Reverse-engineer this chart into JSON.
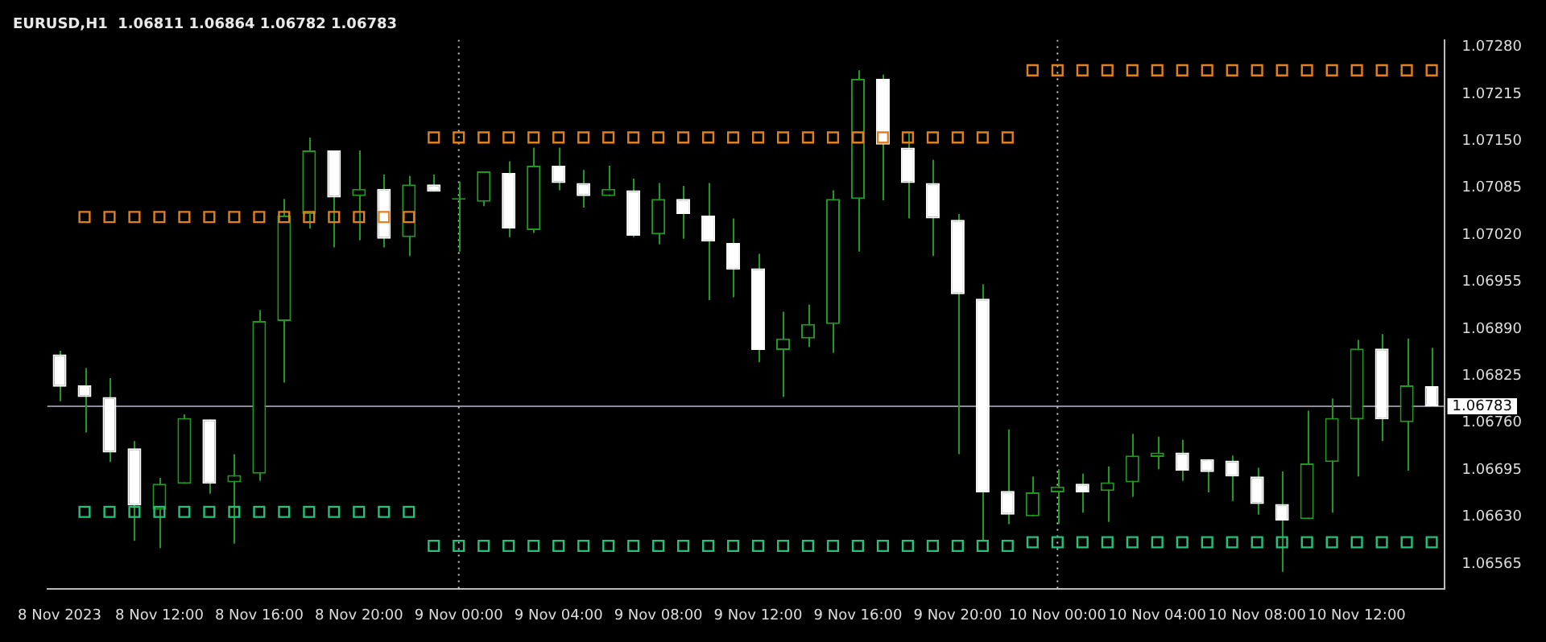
{
  "chart_data": {
    "type": "candlestick",
    "title": "EURUSD,H1  1.06811 1.06864 1.06782 1.06783",
    "color": "#1f9a1f",
    "colors": [
      "#ffffff",
      "#ffffff",
      "#ffffff",
      "#ffffff",
      "#1f9a1f",
      "#1f9a1f",
      "#ffffff",
      "#1f9a1f",
      "#1f9a1f",
      "#1f9a1f",
      "#1f9a1f",
      "#ffffff",
      "#1f9a1f",
      "#ffffff",
      "#1f9a1f",
      "#ffffff",
      "#1f9a1f",
      "#1f9a1f",
      "#ffffff",
      "#1f9a1f",
      "#ffffff",
      "#ffffff",
      "#1f9a1f",
      "#ffffff",
      "#1f9a1f",
      "#ffffff",
      "#ffffff",
      "#ffffff",
      "#ffffff",
      "#1f9a1f",
      "#1f9a1f",
      "#1f9a1f",
      "#1f9a1f",
      "#ffffff",
      "#ffffff",
      "#ffffff",
      "#ffffff",
      "#ffffff",
      "#ffffff",
      "#1f9a1f",
      "#1f9a1f",
      "#ffffff",
      "#1f9a1f",
      "#1f9a1f",
      "#1f9a1f",
      "#ffffff",
      "#ffffff",
      "#ffffff",
      "#ffffff",
      "#ffffff",
      "#1f9a1f",
      "#1f9a1f",
      "#1f9a1f",
      "#ffffff",
      "#1f9a1f",
      "#ffffff"
    ],
    "categories": [
      "8 Nov 2023",
      null,
      null,
      null,
      "8 Nov 12:00",
      null,
      null,
      null,
      "8 Nov 16:00",
      null,
      null,
      null,
      "8 Nov 20:00",
      null,
      null,
      null,
      "9 Nov 00:00",
      null,
      null,
      null,
      "9 Nov 04:00",
      null,
      null,
      null,
      "9 Nov 08:00",
      null,
      null,
      null,
      "9 Nov 12:00",
      null,
      null,
      null,
      "9 Nov 16:00",
      null,
      null,
      null,
      "9 Nov 20:00",
      null,
      null,
      null,
      "10 Nov 00:00",
      null,
      null,
      null,
      "10 Nov 04:00",
      null,
      null,
      null,
      "10 Nov 08:00",
      null,
      null,
      null,
      "10 Nov 12:00",
      null,
      null,
      null
    ],
    "ohlc": [
      [
        1.06855,
        1.0686,
        1.0679,
        1.0681
      ],
      [
        1.06812,
        1.06836,
        1.06747,
        1.06796
      ],
      [
        1.06796,
        1.06822,
        1.06706,
        1.06719
      ],
      [
        1.06725,
        1.06735,
        1.06597,
        1.06646
      ],
      [
        1.0664,
        1.06684,
        1.06587,
        1.06676
      ],
      [
        1.06676,
        1.06772,
        1.06676,
        1.06767
      ],
      [
        1.06765,
        1.06765,
        1.06662,
        1.06676
      ],
      [
        1.06678,
        1.06717,
        1.06593,
        1.06688
      ],
      [
        1.0669,
        1.06916,
        1.0668,
        1.06901
      ],
      [
        1.06901,
        1.0707,
        1.06816,
        1.07047
      ],
      [
        1.07049,
        1.07155,
        1.07029,
        1.07137
      ],
      [
        1.07137,
        1.07137,
        1.07003,
        1.07072
      ],
      [
        1.07074,
        1.07137,
        1.07013,
        1.07084
      ],
      [
        1.07084,
        1.07104,
        1.07003,
        1.07015
      ],
      [
        1.07017,
        1.07102,
        1.06991,
        1.0709
      ],
      [
        1.0709,
        1.07104,
        1.0708,
        1.0708
      ],
      [
        1.07069,
        1.07094,
        1.06997,
        1.07071
      ],
      [
        1.07066,
        1.07108,
        1.0706,
        1.07108
      ],
      [
        1.07106,
        1.07122,
        1.07017,
        1.07029
      ],
      [
        1.07027,
        1.07141,
        1.07023,
        1.07116
      ],
      [
        1.07116,
        1.07141,
        1.07082,
        1.07092
      ],
      [
        1.07092,
        1.0711,
        1.07058,
        1.07074
      ],
      [
        1.07074,
        1.07116,
        1.07074,
        1.07084
      ],
      [
        1.07082,
        1.07098,
        1.07017,
        1.07019
      ],
      [
        1.07021,
        1.07092,
        1.07007,
        1.0707
      ],
      [
        1.0707,
        1.07088,
        1.07015,
        1.07049
      ],
      [
        1.07047,
        1.07092,
        1.0693,
        1.07011
      ],
      [
        1.07009,
        1.07043,
        1.06934,
        1.06972
      ],
      [
        1.06974,
        1.06994,
        1.06844,
        1.06861
      ],
      [
        1.06861,
        1.06914,
        1.06796,
        1.06877
      ],
      [
        1.06877,
        1.06924,
        1.06865,
        1.06897
      ],
      [
        1.06897,
        1.07082,
        1.06857,
        1.0707
      ],
      [
        1.0707,
        1.07248,
        1.06997,
        1.07236
      ],
      [
        1.07236,
        1.07242,
        1.07068,
        1.07145
      ],
      [
        1.07141,
        1.07163,
        1.07043,
        1.07092
      ],
      [
        1.07092,
        1.07124,
        1.06991,
        1.07043
      ],
      [
        1.07041,
        1.07049,
        1.06717,
        1.06938
      ],
      [
        1.06932,
        1.06952,
        1.06597,
        1.06664
      ],
      [
        1.06666,
        1.06751,
        1.0662,
        1.06633
      ],
      [
        1.06631,
        1.06686,
        1.06631,
        1.06664
      ],
      [
        1.06664,
        1.06696,
        1.0662,
        1.06672
      ],
      [
        1.06676,
        1.0669,
        1.06636,
        1.06664
      ],
      [
        1.06666,
        1.067,
        1.06623,
        1.06678
      ],
      [
        1.06678,
        1.06745,
        1.06658,
        1.06715
      ],
      [
        1.06713,
        1.06741,
        1.06696,
        1.06719
      ],
      [
        1.06719,
        1.06737,
        1.0668,
        1.06694
      ],
      [
        1.0671,
        1.0671,
        1.06664,
        1.06692
      ],
      [
        1.06708,
        1.06715,
        1.06652,
        1.06686
      ],
      [
        1.06686,
        1.06698,
        1.06633,
        1.06648
      ],
      [
        1.06648,
        1.06693,
        1.06554,
        1.06625
      ],
      [
        1.06627,
        1.06777,
        1.06627,
        1.06704
      ],
      [
        1.06706,
        1.06794,
        1.06636,
        1.06767
      ],
      [
        1.06765,
        1.06875,
        1.06686,
        1.06863
      ],
      [
        1.06863,
        1.06883,
        1.06735,
        1.06765
      ],
      [
        1.06761,
        1.06877,
        1.06694,
        1.06812
      ],
      [
        1.06811,
        1.06864,
        1.06782,
        1.06783
      ]
    ],
    "series": [
      {
        "type": "scatter",
        "color": "#e0801f",
        "values": [
          null,
          1.07045,
          1.07045,
          1.07045,
          1.07045,
          1.07045,
          1.07045,
          1.07045,
          1.07045,
          1.07045,
          1.07045,
          1.07045,
          1.07045,
          1.07045,
          1.07045,
          null,
          null,
          null,
          null,
          null,
          null,
          null,
          null,
          null,
          null,
          null,
          null,
          null,
          null,
          null,
          null,
          null,
          null,
          null,
          null,
          null,
          null,
          null,
          null,
          null,
          null,
          null,
          null,
          null,
          null,
          null,
          null,
          null,
          null,
          null,
          null,
          null,
          null,
          null,
          null,
          null
        ]
      },
      {
        "type": "scatter",
        "color": "#e0801f",
        "values": [
          null,
          null,
          null,
          null,
          null,
          null,
          null,
          null,
          null,
          null,
          null,
          null,
          null,
          null,
          null,
          1.07155,
          1.07155,
          1.07155,
          1.07155,
          1.07155,
          1.07155,
          1.07155,
          1.07155,
          1.07155,
          1.07155,
          1.07155,
          1.07155,
          1.07155,
          1.07155,
          1.07155,
          1.07155,
          1.07155,
          1.07155,
          1.07155,
          1.07155,
          1.07155,
          1.07155,
          1.07155,
          1.07155,
          null,
          null,
          null,
          null,
          null,
          null,
          null,
          null,
          null,
          null,
          null,
          null,
          null,
          null,
          null,
          null,
          null
        ]
      },
      {
        "type": "scatter",
        "color": "#e0801f",
        "values": [
          null,
          null,
          null,
          null,
          null,
          null,
          null,
          null,
          null,
          null,
          null,
          null,
          null,
          null,
          null,
          null,
          null,
          null,
          null,
          null,
          null,
          null,
          null,
          null,
          null,
          null,
          null,
          null,
          null,
          null,
          null,
          null,
          null,
          null,
          null,
          null,
          null,
          null,
          null,
          1.07248,
          1.07248,
          1.07248,
          1.07248,
          1.07248,
          1.07248,
          1.07248,
          1.07248,
          1.07248,
          1.07248,
          1.07248,
          1.07248,
          1.07248,
          1.07248,
          1.07248,
          1.07248,
          1.07248
        ]
      },
      {
        "type": "scatter",
        "color": "#25c07a",
        "values": [
          null,
          1.06637,
          1.06637,
          1.06637,
          1.06637,
          1.06637,
          1.06637,
          1.06637,
          1.06637,
          1.06637,
          1.06637,
          1.06637,
          1.06637,
          1.06637,
          1.06637,
          null,
          null,
          null,
          null,
          null,
          null,
          null,
          null,
          null,
          null,
          null,
          null,
          null,
          null,
          null,
          null,
          null,
          null,
          null,
          null,
          null,
          null,
          null,
          null,
          null,
          null,
          null,
          null,
          null,
          null,
          null,
          null,
          null,
          null,
          null,
          null,
          null,
          null,
          null,
          null,
          null
        ]
      },
      {
        "type": "scatter",
        "color": "#25c07a",
        "values": [
          null,
          null,
          null,
          null,
          null,
          null,
          null,
          null,
          null,
          null,
          null,
          null,
          null,
          null,
          null,
          1.0659,
          1.0659,
          1.0659,
          1.0659,
          1.0659,
          1.0659,
          1.0659,
          1.0659,
          1.0659,
          1.0659,
          1.0659,
          1.0659,
          1.0659,
          1.0659,
          1.0659,
          1.0659,
          1.0659,
          1.0659,
          1.0659,
          1.0659,
          1.0659,
          1.0659,
          1.0659,
          1.0659,
          null,
          null,
          null,
          null,
          null,
          null,
          null,
          null,
          null,
          null,
          null,
          null,
          null,
          null,
          null,
          null,
          null
        ]
      },
      {
        "type": "scatter",
        "color": "#25c07a",
        "values": [
          null,
          null,
          null,
          null,
          null,
          null,
          null,
          null,
          null,
          null,
          null,
          null,
          null,
          null,
          null,
          null,
          null,
          null,
          null,
          null,
          null,
          null,
          null,
          null,
          null,
          null,
          null,
          null,
          null,
          null,
          null,
          null,
          null,
          null,
          null,
          null,
          null,
          null,
          null,
          1.06595,
          1.06595,
          1.06595,
          1.06595,
          1.06595,
          1.06595,
          1.06595,
          1.06595,
          1.06595,
          1.06595,
          1.06595,
          1.06595,
          1.06595,
          1.06595,
          1.06595,
          1.06595,
          1.06595
        ]
      }
    ],
    "marker": "square",
    "ylim": [
      1.0653,
      1.0729
    ],
    "yticks": [
      {
        "value": 1.0728,
        "label": "1.07280"
      },
      {
        "value": 1.07215,
        "label": "1.07215"
      },
      {
        "value": 1.0715,
        "label": "1.07150"
      },
      {
        "value": 1.07085,
        "label": "1.07085"
      },
      {
        "value": 1.0702,
        "label": "1.07020"
      },
      {
        "value": 1.06955,
        "label": "1.06955"
      },
      {
        "value": 1.0689,
        "label": "1.06890"
      },
      {
        "value": 1.06825,
        "label": "1.06825"
      },
      {
        "value": 1.0676,
        "label": "1.06760"
      },
      {
        "value": 1.06695,
        "label": "1.06695"
      },
      {
        "value": 1.0663,
        "label": "1.06630"
      },
      {
        "value": 1.06565,
        "label": "1.06565"
      }
    ],
    "ref_lines": [
      {
        "axis": "y",
        "value": 1.06783,
        "label": "1.06783",
        "color": "#8a8a9a",
        "line_style": "solid"
      },
      {
        "axis": "x",
        "value": "9 Nov 00:00",
        "color": "#c8c8c8",
        "line_style": "dotted"
      },
      {
        "axis": "x",
        "value": "10 Nov 00:00",
        "color": "#c8c8c8",
        "line_style": "dotted"
      }
    ]
  }
}
